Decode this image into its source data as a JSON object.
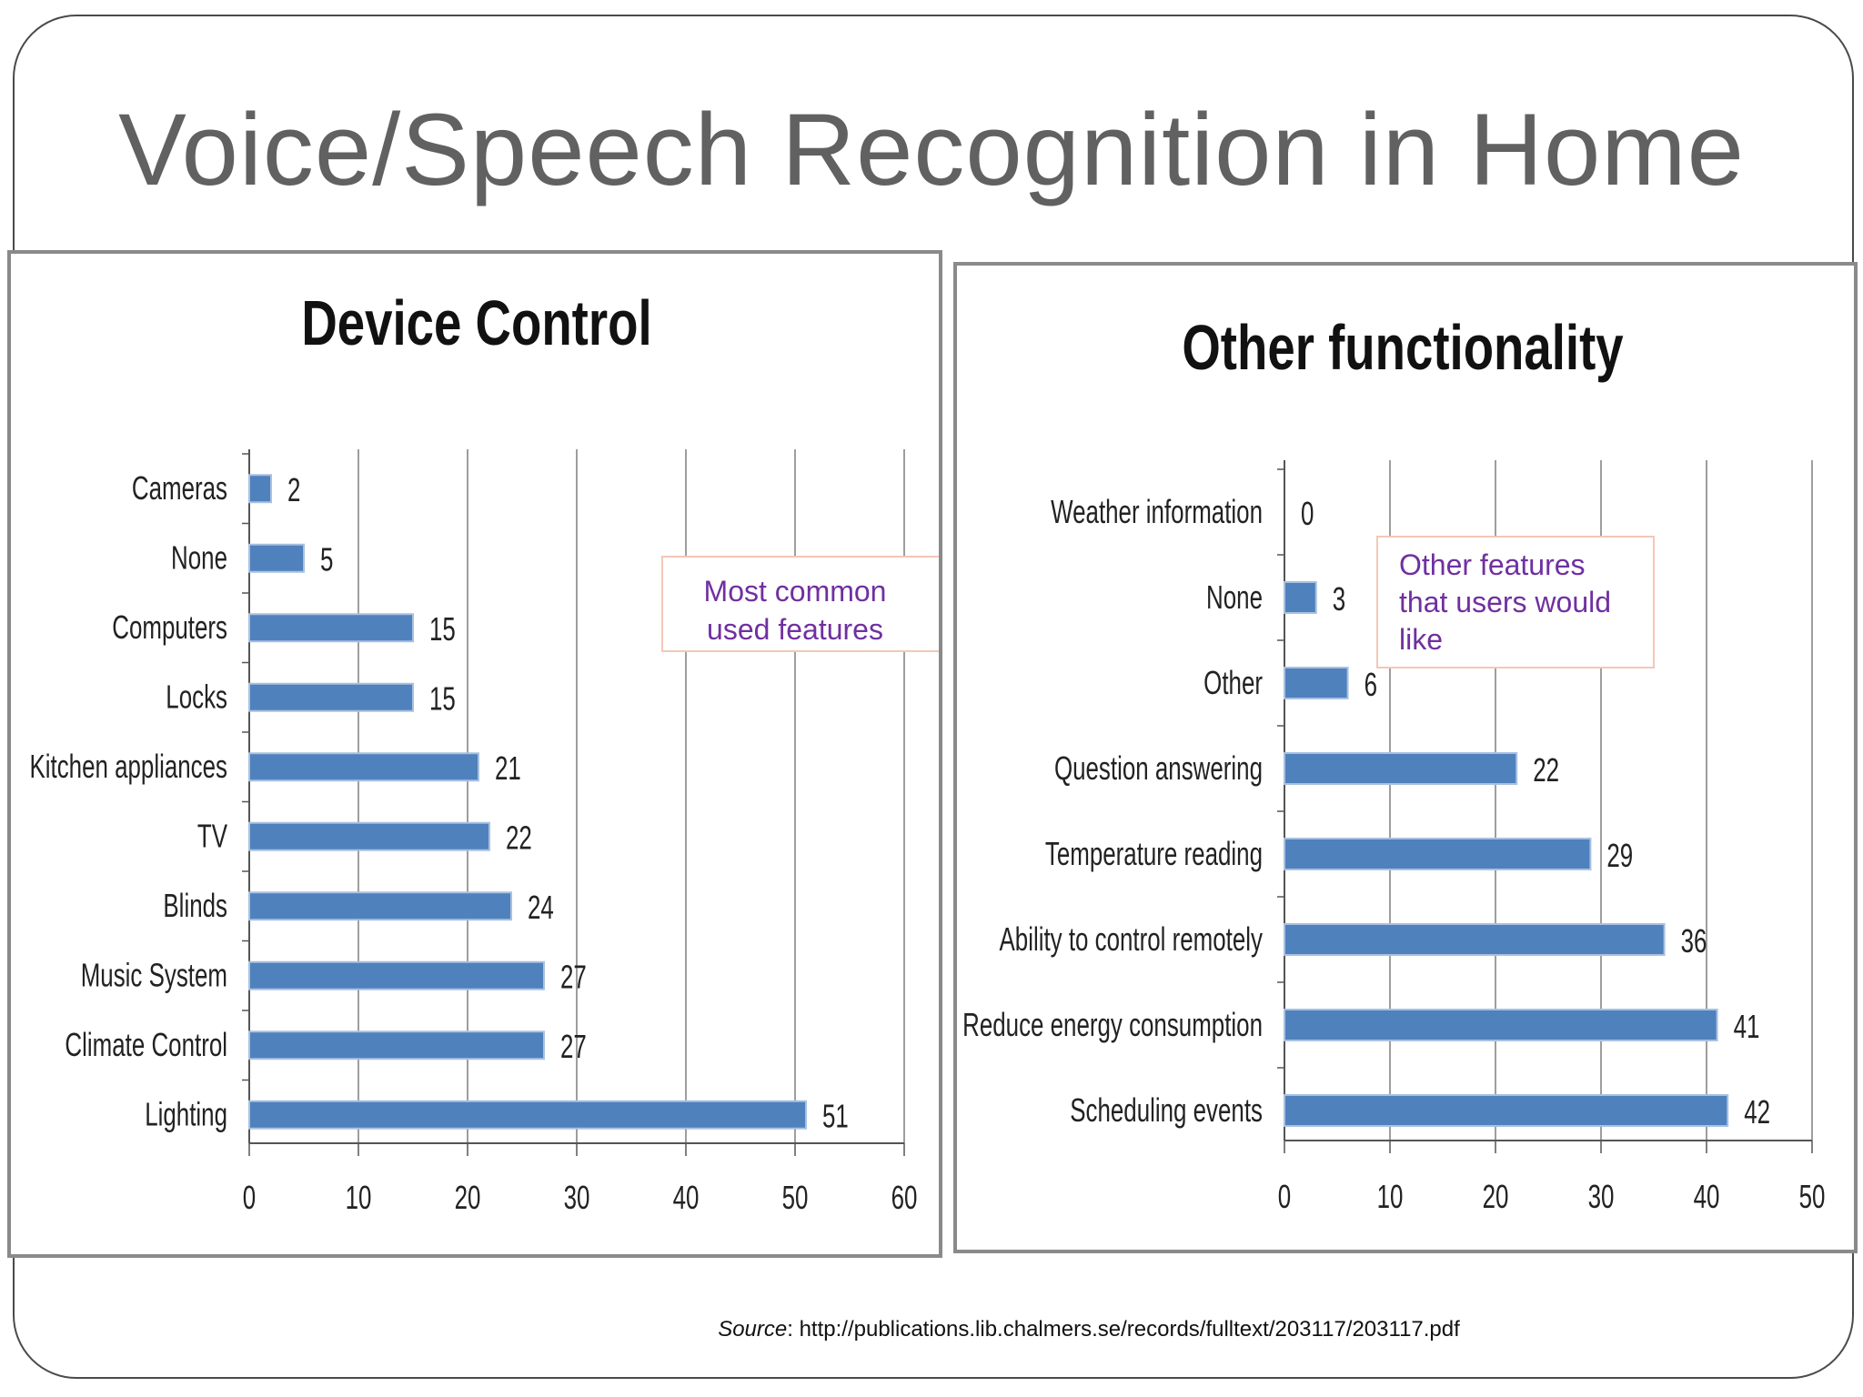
{
  "slide": {
    "title": "Voice/Speech Recognition in Home",
    "source_label": "Source",
    "source_url": ": http://publications.lib.chalmers.se/records/fulltext/203117/203117.pdf"
  },
  "colors": {
    "bar": "#4f81bd",
    "callout_text": "#7030a0",
    "callout_border": "#f4c7b8",
    "grid": "#7f7f7f"
  },
  "chart_data": [
    {
      "type": "bar",
      "orientation": "horizontal",
      "title": "Device Control",
      "categories": [
        "Cameras",
        "None",
        "Computers",
        "Locks",
        "Kitchen appliances",
        "TV",
        "Blinds",
        "Music System",
        "Climate Control",
        "Lighting"
      ],
      "values": [
        2,
        5,
        15,
        15,
        21,
        22,
        24,
        27,
        27,
        51
      ],
      "xlim": [
        0,
        60
      ],
      "xticks": [
        0,
        10,
        20,
        30,
        40,
        50,
        60
      ],
      "grid": true,
      "callout": [
        "Most common",
        "used features"
      ]
    },
    {
      "type": "bar",
      "orientation": "horizontal",
      "title": "Other functionality",
      "categories": [
        "Weather information",
        "None",
        "Other",
        "Question answering",
        "Temperature reading",
        "Ability to control remotely",
        "Reduce energy consumption",
        "Scheduling events"
      ],
      "values": [
        0,
        3,
        6,
        22,
        29,
        36,
        41,
        42
      ],
      "xlim": [
        0,
        50
      ],
      "xticks": [
        0,
        10,
        20,
        30,
        40,
        50
      ],
      "grid": true,
      "callout": [
        "Other features",
        "that users would",
        "like"
      ]
    }
  ]
}
